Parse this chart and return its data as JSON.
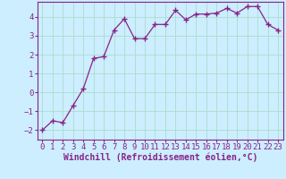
{
  "x": [
    0,
    1,
    2,
    3,
    4,
    5,
    6,
    7,
    8,
    9,
    10,
    11,
    12,
    13,
    14,
    15,
    16,
    17,
    18,
    19,
    20,
    21,
    22,
    23
  ],
  "y": [
    -2.0,
    -1.5,
    -1.6,
    -0.7,
    0.2,
    1.8,
    1.9,
    3.3,
    3.9,
    2.85,
    2.85,
    3.6,
    3.6,
    4.35,
    3.85,
    4.15,
    4.15,
    4.2,
    4.45,
    4.2,
    4.55,
    4.55,
    3.6,
    3.3
  ],
  "line_color": "#882288",
  "marker": "+",
  "marker_color": "#882288",
  "bg_color": "#cceeff",
  "grid_color": "#aaddcc",
  "axis_color": "#882288",
  "xlabel": "Windchill (Refroidissement éolien,°C)",
  "xlabel_color": "#882288",
  "tick_color": "#882288",
  "ylim": [
    -2.5,
    4.8
  ],
  "xlim": [
    -0.5,
    23.5
  ],
  "yticks": [
    -2,
    -1,
    0,
    1,
    2,
    3,
    4
  ],
  "xtick_labels": [
    "0",
    "1",
    "2",
    "3",
    "4",
    "5",
    "6",
    "7",
    "8",
    "9",
    "10",
    "11",
    "12",
    "13",
    "14",
    "15",
    "16",
    "17",
    "18",
    "19",
    "20",
    "21",
    "22",
    "23"
  ],
  "font_size": 6.5,
  "xlabel_fontsize": 7
}
